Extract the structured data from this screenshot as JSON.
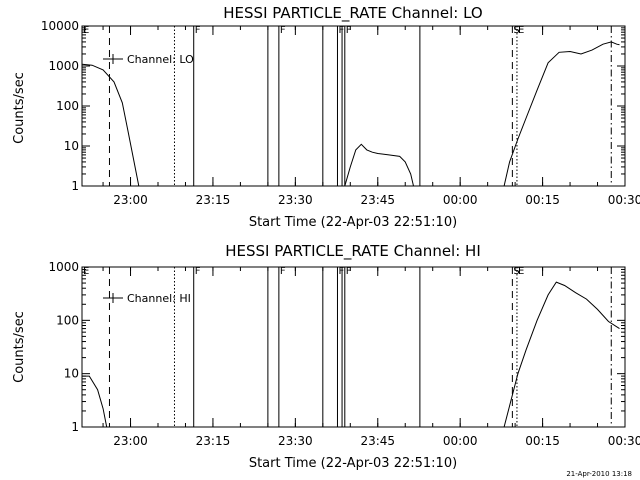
{
  "plot_time_range": [
    "22:51:10",
    "00:30:00"
  ],
  "chart_data": [
    {
      "type": "line",
      "title": "HESSI PARTICLE_RATE Channel: LO",
      "xlabel": "Start Time (22-Apr-03 22:51:10)",
      "ylabel": "Counts/sec",
      "y_scale": "log",
      "ylim": [
        1,
        10000
      ],
      "y_ticks": [
        "1",
        "10",
        "100",
        "1000",
        "10000"
      ],
      "x_ticks": [
        "23:00",
        "23:15",
        "23:30",
        "23:45",
        "00:00",
        "00:15",
        "00:30"
      ],
      "legend": {
        "label": "Channel: LO",
        "placement": "top-left"
      },
      "series": [
        {
          "name": "Channel: LO",
          "segments": [
            [
              [
                "22:51:10",
                1100
              ],
              [
                "22:53:00",
                1050
              ],
              [
                "22:55:00",
                800
              ],
              [
                "22:57:00",
                400
              ],
              [
                "22:58:30",
                120
              ],
              [
                "22:59:30",
                25
              ],
              [
                "23:00:30",
                5
              ],
              [
                "23:01:30",
                1
              ]
            ],
            [
              [
                "23:39:00",
                1
              ],
              [
                "23:40:00",
                3
              ],
              [
                "23:41:00",
                8
              ],
              [
                "23:42:00",
                11
              ],
              [
                "23:43:00",
                8
              ],
              [
                "23:44:00",
                7
              ],
              [
                "23:45:00",
                6.5
              ],
              [
                "23:47:00",
                6
              ],
              [
                "23:49:00",
                5.5
              ],
              [
                "23:50:00",
                4
              ],
              [
                "23:51:00",
                2
              ],
              [
                "23:51:30",
                1
              ]
            ],
            [
              [
                "00:08:00",
                1
              ],
              [
                "00:09:00",
                4
              ],
              [
                "00:10:30",
                15
              ],
              [
                "00:12:00",
                50
              ],
              [
                "00:14:00",
                250
              ],
              [
                "00:16:00",
                1200
              ],
              [
                "00:18:00",
                2200
              ],
              [
                "00:20:00",
                2300
              ],
              [
                "00:22:00",
                2000
              ],
              [
                "00:24:00",
                2500
              ],
              [
                "00:26:00",
                3500
              ],
              [
                "00:27:30",
                4000
              ],
              [
                "00:28:30",
                3500
              ],
              [
                "00:29:00",
                3400
              ]
            ]
          ]
        }
      ],
      "markers": [
        {
          "time": "22:51:10",
          "style": "solid",
          "flag": "E"
        },
        {
          "time": "22:56:10",
          "style": "dashed",
          "flag": ""
        },
        {
          "time": "23:08:00",
          "style": "dotted",
          "flag": ""
        },
        {
          "time": "23:11:30",
          "style": "solid",
          "flag": "F"
        },
        {
          "time": "23:25:00",
          "style": "solid",
          "flag": ""
        },
        {
          "time": "23:27:00",
          "style": "solid",
          "flag": "F"
        },
        {
          "time": "23:35:00",
          "style": "solid",
          "flag": ""
        },
        {
          "time": "23:37:40",
          "style": "solid",
          "flag": "F"
        },
        {
          "time": "23:38:30",
          "style": "solid",
          "flag": ""
        },
        {
          "time": "23:39:00",
          "style": "solid",
          "flag": "F"
        },
        {
          "time": "23:52:40",
          "style": "solid",
          "flag": ""
        },
        {
          "time": "00:09:30",
          "style": "dashed",
          "flag": "S"
        },
        {
          "time": "00:10:20",
          "style": "dotted",
          "flag": "E"
        },
        {
          "time": "00:27:30",
          "style": "dashdot",
          "flag": ""
        }
      ]
    },
    {
      "type": "line",
      "title": "HESSI PARTICLE_RATE Channel: HI",
      "xlabel": "Start Time (22-Apr-03 22:51:10)",
      "ylabel": "Counts/sec",
      "y_scale": "log",
      "ylim": [
        1,
        1000
      ],
      "y_ticks": [
        "1",
        "10",
        "100",
        "1000"
      ],
      "x_ticks": [
        "23:00",
        "23:15",
        "23:30",
        "23:45",
        "00:00",
        "00:15",
        "00:30"
      ],
      "legend": {
        "label": "Channel: HI",
        "placement": "top-left"
      },
      "series": [
        {
          "name": "Channel: HI",
          "segments": [
            [
              [
                "22:51:10",
                9
              ],
              [
                "22:52:30",
                9
              ],
              [
                "22:54:00",
                5
              ],
              [
                "22:55:00",
                2.2
              ],
              [
                "22:55:40",
                1
              ]
            ],
            [
              [
                "00:08:00",
                1
              ],
              [
                "00:09:00",
                2.5
              ],
              [
                "00:10:30",
                10
              ],
              [
                "00:12:00",
                28
              ],
              [
                "00:14:00",
                100
              ],
              [
                "00:16:00",
                300
              ],
              [
                "00:17:30",
                520
              ],
              [
                "00:19:00",
                450
              ],
              [
                "00:21:00",
                330
              ],
              [
                "00:23:00",
                250
              ],
              [
                "00:25:00",
                160
              ],
              [
                "00:27:00",
                95
              ],
              [
                "00:29:00",
                70
              ]
            ]
          ]
        }
      ],
      "markers": [
        {
          "time": "22:51:10",
          "style": "solid",
          "flag": "E"
        },
        {
          "time": "22:56:10",
          "style": "dashed",
          "flag": ""
        },
        {
          "time": "23:08:00",
          "style": "dotted",
          "flag": ""
        },
        {
          "time": "23:11:30",
          "style": "solid",
          "flag": "F"
        },
        {
          "time": "23:25:00",
          "style": "solid",
          "flag": ""
        },
        {
          "time": "23:27:00",
          "style": "solid",
          "flag": "F"
        },
        {
          "time": "23:35:00",
          "style": "solid",
          "flag": ""
        },
        {
          "time": "23:37:40",
          "style": "solid",
          "flag": "F"
        },
        {
          "time": "23:38:30",
          "style": "solid",
          "flag": ""
        },
        {
          "time": "23:39:00",
          "style": "solid",
          "flag": "F"
        },
        {
          "time": "23:52:40",
          "style": "solid",
          "flag": ""
        },
        {
          "time": "00:09:30",
          "style": "dashed",
          "flag": "S"
        },
        {
          "time": "00:10:20",
          "style": "dotted",
          "flag": "E"
        },
        {
          "time": "00:27:30",
          "style": "dashdot",
          "flag": ""
        }
      ]
    }
  ],
  "footer": {
    "timestamp": "21-Apr-2010 13:18"
  }
}
